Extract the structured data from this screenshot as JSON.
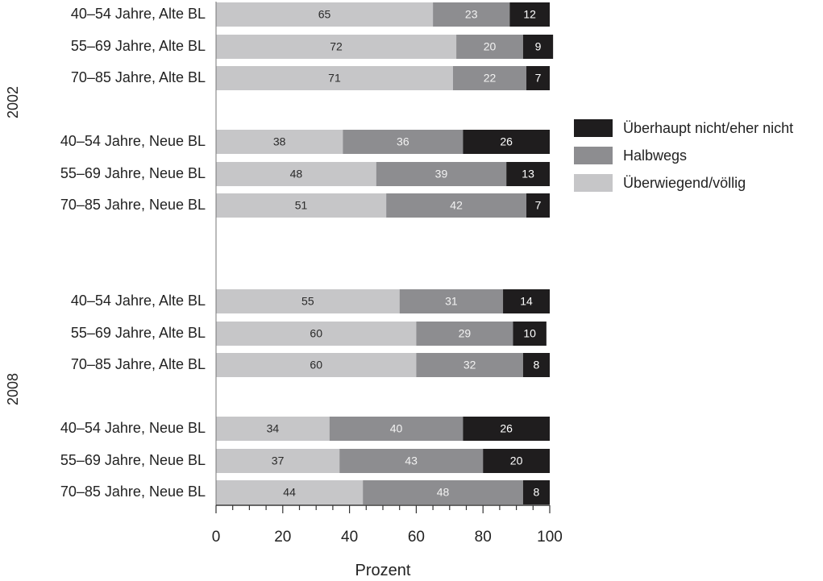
{
  "chart_data": {
    "type": "bar",
    "orientation": "horizontal",
    "stacked": true,
    "title": "",
    "xlabel": "Prozent",
    "ylabel": "",
    "xlim": [
      0,
      100
    ],
    "x_ticks": [
      0,
      20,
      40,
      60,
      80,
      100
    ],
    "x_tick_labels": [
      "0",
      "20",
      "40",
      "60",
      "80",
      "100"
    ],
    "legend_position": "right",
    "series": [
      {
        "name": "Überwiegend/völlig",
        "color": "#c6c6c8"
      },
      {
        "name": "Halbwegs",
        "color": "#8d8d90"
      },
      {
        "name": "Überhaupt nicht/eher nicht",
        "color": "#1f1d1e"
      }
    ],
    "legend_order": [
      2,
      1,
      0
    ],
    "groups": [
      {
        "label": "2002",
        "rows": [
          {
            "category": "40–54 Jahre, Alte BL",
            "values": [
              65,
              23,
              12
            ]
          },
          {
            "category": "55–69 Jahre, Alte BL",
            "values": [
              72,
              20,
              9
            ]
          },
          {
            "category": "70–85 Jahre, Alte BL",
            "values": [
              71,
              22,
              7
            ]
          },
          {
            "category": "40–54 Jahre, Neue BL",
            "values": [
              38,
              36,
              26
            ]
          },
          {
            "category": "55–69 Jahre, Neue BL",
            "values": [
              48,
              39,
              13
            ]
          },
          {
            "category": "70–85 Jahre, Neue BL",
            "values": [
              51,
              42,
              7
            ]
          }
        ]
      },
      {
        "label": "2008",
        "rows": [
          {
            "category": "40–54 Jahre, Alte BL",
            "values": [
              55,
              31,
              14
            ]
          },
          {
            "category": "55–69 Jahre, Alte BL",
            "values": [
              60,
              29,
              10
            ]
          },
          {
            "category": "70–85 Jahre, Alte BL",
            "values": [
              60,
              32,
              8
            ]
          },
          {
            "category": "40–54 Jahre, Neue BL",
            "values": [
              34,
              40,
              26
            ]
          },
          {
            "category": "55–69 Jahre, Neue BL",
            "values": [
              37,
              43,
              20
            ]
          },
          {
            "category": "70–85 Jahre, Neue BL",
            "values": [
              44,
              48,
              8
            ]
          }
        ]
      }
    ]
  }
}
